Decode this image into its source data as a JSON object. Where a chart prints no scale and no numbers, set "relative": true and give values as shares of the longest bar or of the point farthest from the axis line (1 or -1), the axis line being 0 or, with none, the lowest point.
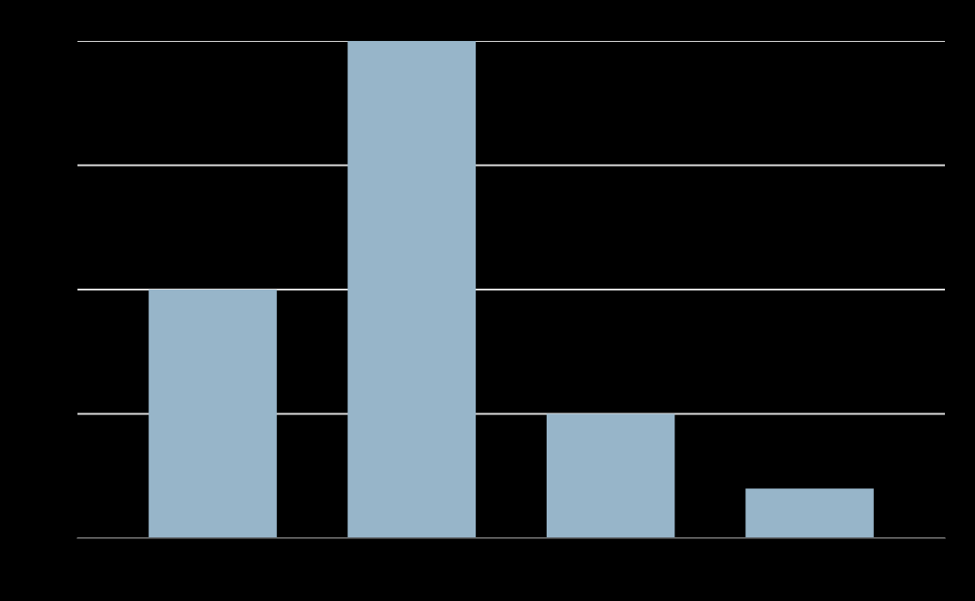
{
  "chart_data": {
    "type": "bar",
    "categories": [
      null,
      null,
      null,
      null
    ],
    "values": [
      0.5,
      1,
      0.25,
      0.1
    ],
    "color": "#97b5c9",
    "relative": true,
    "grid": "y"
  }
}
